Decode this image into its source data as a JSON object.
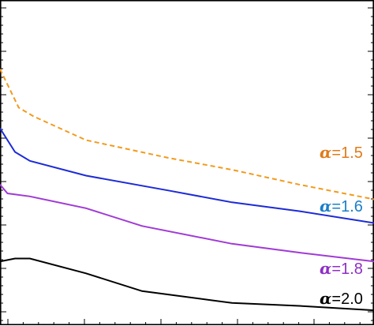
{
  "chart_data": {
    "type": "line",
    "title": "",
    "xlabel": "",
    "ylabel": "",
    "xlim": [
      0,
      100
    ],
    "ylim": [
      0,
      100
    ],
    "grid": false,
    "legend": "inline-right",
    "series": [
      {
        "name": "α=1.5",
        "label_symbol": "α",
        "label_value": "=1.5",
        "color": "#f29a1c",
        "dash": "dashed",
        "x": [
          0,
          5,
          9,
          23,
          45,
          62,
          80,
          100
        ],
        "y": [
          82,
          69,
          66,
          58,
          52,
          48,
          43,
          38
        ]
      },
      {
        "name": "α=1.6",
        "label_symbol": "α",
        "label_value": "=1.6",
        "color": "#1d2bd6",
        "dash": "solid",
        "x": [
          0,
          4,
          8,
          23,
          45,
          62,
          80,
          100
        ],
        "y": [
          62,
          54,
          51,
          46,
          41,
          37,
          34,
          30
        ]
      },
      {
        "name": "α=1.8",
        "label_symbol": "α",
        "label_value": "=1.8",
        "color": "#a03ad6",
        "dash": "solid",
        "x": [
          0,
          2,
          8,
          23,
          38,
          62,
          80,
          100
        ],
        "y": [
          43,
          40,
          39,
          35,
          29,
          23,
          20,
          17
        ]
      },
      {
        "name": "α=2.0",
        "label_symbol": "α",
        "label_value": "=2.0",
        "color": "#000000",
        "dash": "solid",
        "x": [
          0,
          4,
          8,
          23,
          38,
          62,
          80,
          100
        ],
        "y": [
          17,
          18,
          18,
          13,
          7,
          3,
          2,
          0.5
        ]
      }
    ],
    "series_label_colors": {
      "α=1.5": "#e07b1a",
      "α=1.6": "#1a7fc8",
      "α=1.8": "#8e2fc4",
      "α=2.0": "#000000"
    }
  }
}
